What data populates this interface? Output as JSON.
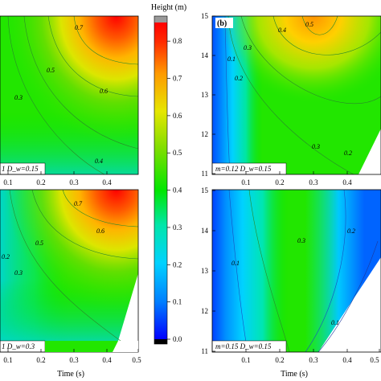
{
  "chart_data": [
    {
      "panel": "top-left",
      "type": "heatmap",
      "panel_label": "",
      "x": {
        "ticks": [
          0.1,
          0.2,
          0.3,
          0.4
        ],
        "tick_labels": [
          "0.1",
          "0.2",
          "0.3",
          "0.4"
        ],
        "label": ""
      },
      "y": {
        "ticks": [],
        "label": ""
      },
      "annotation": "1 D_w=0.15",
      "contour_labels": [
        "0.7",
        "0.6",
        "0.5",
        "0.3",
        "0.4"
      ]
    },
    {
      "panel": "top-right",
      "type": "heatmap",
      "panel_label": "(b)",
      "x": {
        "ticks": [
          0.1,
          0.2,
          0.3,
          0.4
        ],
        "tick_labels": [
          "0.1",
          "0.2",
          "0.3",
          "0.4"
        ],
        "label": ""
      },
      "y": {
        "ticks": [
          11,
          12,
          13,
          14,
          15
        ],
        "tick_labels": [
          "11",
          "12",
          "13",
          "14",
          "15"
        ],
        "label": ""
      },
      "annotation": "m=0.12 D_w=0.15",
      "contour_labels": [
        "0.5",
        "0.4",
        "0.3",
        "0.2",
        "0.1",
        "0.3",
        "0.2"
      ]
    },
    {
      "panel": "bottom-left",
      "type": "heatmap",
      "panel_label": "",
      "x": {
        "ticks": [
          0.1,
          0.2,
          0.3,
          0.4,
          0.5
        ],
        "tick_labels": [
          "0.1",
          "0.2",
          "0.3",
          "0.4",
          "0.5"
        ],
        "label": "Time (s)"
      },
      "y": {
        "ticks": [],
        "label": ""
      },
      "annotation": "1 D_w=0.3",
      "contour_labels": [
        "0.7",
        "0.6",
        "0.5",
        "0.2",
        "0.3"
      ]
    },
    {
      "panel": "bottom-right",
      "type": "heatmap",
      "panel_label": "",
      "x": {
        "ticks": [
          0.1,
          0.2,
          0.3,
          0.4,
          0.5
        ],
        "tick_labels": [
          "0.1",
          "0.2",
          "0.3",
          "0.4",
          "0.5"
        ],
        "label": "Time (s)"
      },
      "y": {
        "ticks": [
          11,
          12,
          13,
          14,
          15
        ],
        "tick_labels": [
          "11",
          "12",
          "13",
          "14",
          "15"
        ],
        "label": ""
      },
      "annotation": "m=0.15 D_w=0.15",
      "contour_labels": [
        "0.3",
        "0.2",
        "0.1",
        "0.1"
      ]
    }
  ],
  "colorbar": {
    "title": "Height (m)",
    "ticks": [
      0.0,
      0.1,
      0.2,
      0.3,
      0.4,
      0.5,
      0.6,
      0.7,
      0.8
    ],
    "tick_labels": [
      "0.0",
      "0.1",
      "0.2",
      "0.3",
      "0.4",
      "0.5",
      "0.6",
      "0.7",
      "0.8"
    ],
    "range": [
      0.0,
      0.85
    ],
    "colors": [
      "#0000ff",
      "#0080ff",
      "#00d2ff",
      "#00e6aa",
      "#00e600",
      "#7dde00",
      "#e6e600",
      "#ff9900",
      "#ff2a00",
      "#ff0000"
    ]
  }
}
